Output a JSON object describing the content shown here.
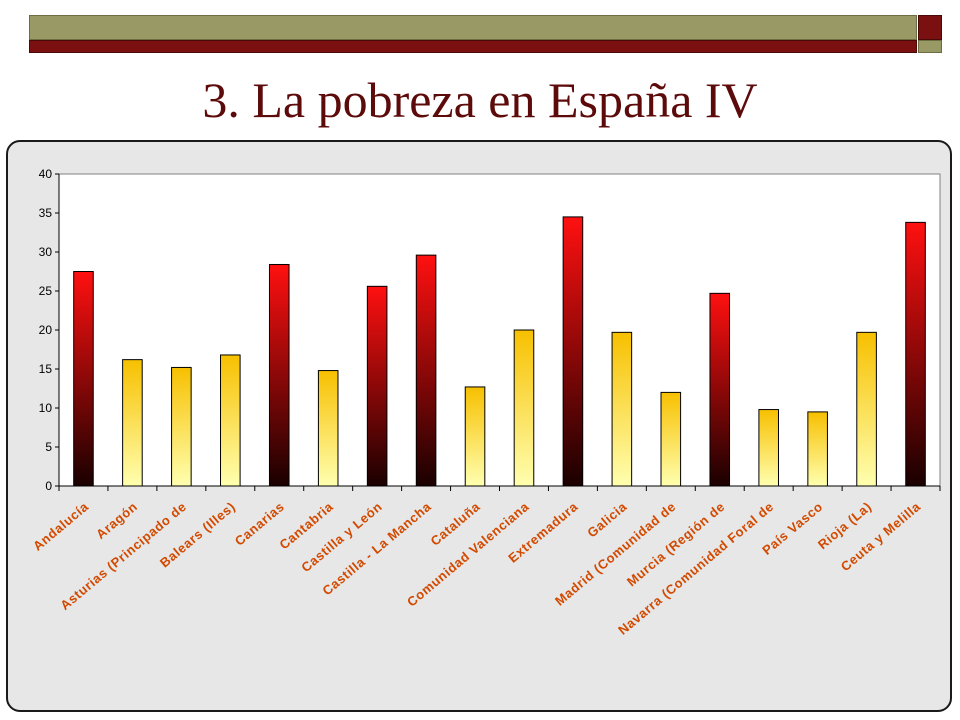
{
  "slide": {
    "title": "3. La pobreza en España IV"
  },
  "colors": {
    "header_olive": "#999966",
    "header_red": "#7a1010",
    "title": "#5c0a0a",
    "label": "#d24a00",
    "frame_bg": "#e7e7e7",
    "bar_high_top": "#ff1010",
    "bar_high_bottom": "#1a0000",
    "bar_low_top": "#f7c000",
    "bar_low_bottom": "#ffffb0"
  },
  "chart_data": {
    "type": "bar",
    "title": "",
    "xlabel": "",
    "ylabel": "",
    "ylim": [
      0,
      40
    ],
    "yticks": [
      0,
      5,
      10,
      15,
      20,
      25,
      30,
      35,
      40
    ],
    "grid": false,
    "legend": "none",
    "categories": [
      "Andalucía",
      "Aragón",
      "Asturias (Principado de",
      "Balears (Illes)",
      "Canarias",
      "Cantabria",
      "Castilla y León",
      "Castilla - La Mancha",
      "Cataluña",
      "Comunidad Valenciana",
      "Extremadura",
      "Galicia",
      "Madrid (Comunidad de",
      "Murcia (Región de",
      "Navarra (Comunidad Foral de",
      "País Vasco",
      "Rioja (La)",
      "Ceuta y Melilla"
    ],
    "values": [
      27.5,
      16.2,
      15.2,
      16.8,
      28.4,
      14.8,
      25.6,
      29.6,
      12.7,
      20.0,
      34.5,
      19.7,
      12.0,
      24.7,
      9.8,
      9.5,
      19.7,
      33.8
    ],
    "bar_style": [
      "high",
      "low",
      "low",
      "low",
      "high",
      "low",
      "high",
      "high",
      "low",
      "low",
      "high",
      "low",
      "low",
      "high",
      "low",
      "low",
      "low",
      "high"
    ]
  }
}
